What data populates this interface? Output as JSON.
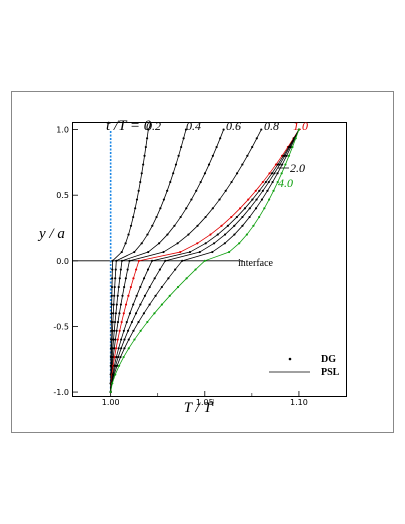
{
  "chart_data": {
    "type": "line",
    "xlabel_main": "T",
    "xlabel_sep": " / ",
    "xlabel_den": "T",
    "xlabel_sup": "i",
    "ylabel": "y / a",
    "xlim": [
      0.98,
      1.125
    ],
    "ylim": [
      -1.03,
      1.05
    ],
    "x_ticks": [
      {
        "value": 1.0,
        "label": "1.00"
      },
      {
        "value": 1.05,
        "label": "1.05"
      },
      {
        "value": 1.1,
        "label": "1.10"
      }
    ],
    "y_ticks": [
      {
        "value": 1.0,
        "label": "1.0"
      },
      {
        "value": 0.5,
        "label": "0.5"
      },
      {
        "value": 0.0,
        "label": "0.0"
      },
      {
        "value": -0.5,
        "label": "-0.5"
      },
      {
        "value": -1.0,
        "label": "-1.0"
      }
    ],
    "interface": {
      "y": 0.0,
      "label": "interface"
    },
    "curve_title": "t /T = 0",
    "time_labels": [
      {
        "label": "0.2",
        "color": "#000000"
      },
      {
        "label": "0.4",
        "color": "#000000"
      },
      {
        "label": "0.6",
        "color": "#000000"
      },
      {
        "label": "0.8",
        "color": "#000000"
      },
      {
        "label": "1.0",
        "color": "#e00000"
      },
      {
        "label": "2.0",
        "color": "#000000"
      },
      {
        "label": "4.0",
        "color": "#10a010"
      }
    ],
    "series": [
      {
        "t": 0.0,
        "color": "#1e88e5",
        "top_x": 1.0,
        "interface_x": 1.0,
        "bottom_x": 1.0
      },
      {
        "t": 0.2,
        "color": "#000000",
        "top_x": 1.02,
        "interface_x": 1.001,
        "bottom_x": 1.0
      },
      {
        "t": 0.4,
        "color": "#000000",
        "top_x": 1.04,
        "interface_x": 1.003,
        "bottom_x": 1.0
      },
      {
        "t": 0.6,
        "color": "#000000",
        "top_x": 1.06,
        "interface_x": 1.006,
        "bottom_x": 1.0
      },
      {
        "t": 0.8,
        "color": "#000000",
        "top_x": 1.08,
        "interface_x": 1.01,
        "bottom_x": 1.0
      },
      {
        "t": 1.0,
        "color": "#e00000",
        "top_x": 1.1,
        "interface_x": 1.015,
        "bottom_x": 1.0
      },
      {
        "t": 1.4,
        "color": "#000000",
        "top_x": 1.1,
        "interface_x": 1.022,
        "bottom_x": 1.0
      },
      {
        "t": 2.0,
        "color": "#000000",
        "top_x": 1.1,
        "interface_x": 1.029,
        "bottom_x": 1.0
      },
      {
        "t": 2.8,
        "color": "#000000",
        "top_x": 1.1,
        "interface_x": 1.038,
        "bottom_x": 1.0
      },
      {
        "t": 4.0,
        "color": "#10a010",
        "top_x": 1.1,
        "interface_x": 1.05,
        "bottom_x": 1.0
      }
    ],
    "legend": [
      {
        "marker": "dot",
        "label": "DG"
      },
      {
        "marker": "line",
        "label": "PSL"
      }
    ],
    "grid": false
  }
}
